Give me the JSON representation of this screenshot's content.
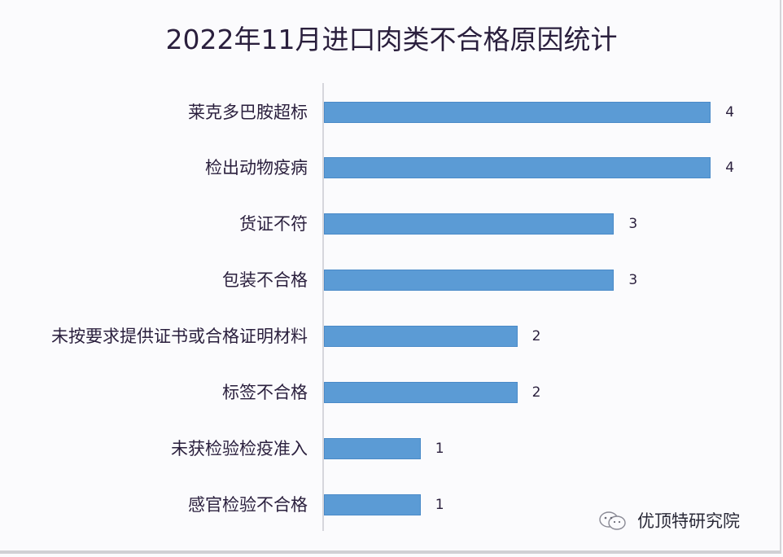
{
  "chart_data": {
    "type": "bar",
    "orientation": "horizontal",
    "title": "2022年11月进口肉类不合格原因统计",
    "categories": [
      "莱克多巴胺超标",
      "检出动物疫病",
      "货证不符",
      "包装不合格",
      "未按要求提供证书或合格证明材料",
      "标签不合格",
      "未获检验检疫准入",
      "感官检验不合格"
    ],
    "values": [
      4,
      4,
      3,
      3,
      2,
      2,
      1,
      1
    ],
    "value_labels": [
      "4",
      "4",
      "3",
      "3",
      "2",
      "2",
      "1",
      "1"
    ],
    "xlabel": "",
    "ylabel": "",
    "xlim": [
      0,
      4
    ],
    "grid": false,
    "legend": null,
    "bar_color": "#5b9bd5"
  },
  "watermark": {
    "text": "优顶特研究院",
    "icon": "wechat-icon"
  }
}
